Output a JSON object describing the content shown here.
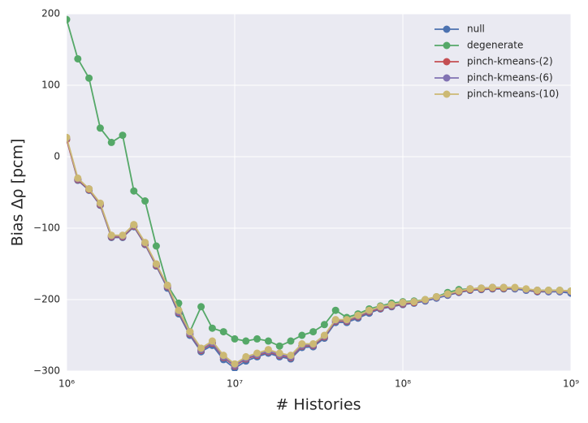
{
  "chart_data": {
    "type": "line",
    "xscale": "log",
    "grid": true,
    "legend": "upper right",
    "xlabel": "# Histories",
    "ylabel": "Bias Δρ [pcm]",
    "xlim": [
      1000000,
      1000000000
    ],
    "ylim": [
      -300,
      200
    ],
    "xticks": [
      {
        "value": 1000000,
        "label": "10⁶"
      },
      {
        "value": 10000000,
        "label": "10⁷"
      },
      {
        "value": 100000000,
        "label": "10⁸"
      },
      {
        "value": 1000000000,
        "label": "10⁹"
      }
    ],
    "yticks": [
      {
        "value": -300,
        "label": "−300"
      },
      {
        "value": -200,
        "label": "−200"
      },
      {
        "value": -100,
        "label": "−100"
      },
      0,
      100,
      200
    ],
    "x": [
      1000000.0,
      1166000.0,
      1359000.0,
      1585000.0,
      1848000.0,
      2154000.0,
      2512000.0,
      2929000.0,
      3415000.0,
      3981000.0,
      4642000.0,
      5412000.0,
      6310000.0,
      7356000.0,
      8577000.0,
      10000000.0,
      11660000.0,
      13590000.0,
      15850000.0,
      18480000.0,
      21540000.0,
      25120000.0,
      29290000.0,
      34150000.0,
      39810000.0,
      46420000.0,
      54120000.0,
      63100000.0,
      73560000.0,
      85770000.0,
      100000000.0,
      116600000.0,
      135900000.0,
      158500000.0,
      184800000.0,
      215400000.0,
      251200000.0,
      292900000.0,
      341500000.0,
      398100000.0,
      464200000.0,
      541200000.0,
      631000000.0,
      735600000.0,
      857700000.0,
      1000000000.0
    ],
    "series": [
      {
        "name": "null",
        "color": "#4c72b0",
        "values": [
          25,
          -33,
          -47,
          -68,
          -113,
          -113,
          -98,
          -123,
          -153,
          -184,
          -220,
          -250,
          -273,
          -264,
          -284,
          -296,
          -286,
          -280,
          -275,
          -280,
          -283,
          -267,
          -266,
          -254,
          -232,
          -232,
          -226,
          -219,
          -213,
          -210,
          -207,
          -205,
          -202,
          -198,
          -194,
          -190,
          -187,
          -186,
          -185,
          -185,
          -185,
          -187,
          -189,
          -189,
          -189,
          -191
        ]
      },
      {
        "name": "degenerate",
        "color": "#55a868",
        "values": [
          192,
          137,
          110,
          40,
          20,
          30,
          -48,
          -62,
          -125,
          -180,
          -205,
          -245,
          -210,
          -240,
          -245,
          -255,
          -258,
          -255,
          -258,
          -265,
          -258,
          -250,
          -245,
          -235,
          -215,
          -225,
          -220,
          -213,
          -209,
          -205,
          -203,
          -202,
          -200,
          -196,
          -190,
          -186,
          -185,
          -184,
          -183,
          -184,
          -184,
          -186,
          -187,
          -187,
          -187,
          -188
        ]
      },
      {
        "name": "pinch-kmeans-(2)",
        "color": "#c44e52",
        "values": [
          24,
          -32,
          -46,
          -67,
          -112,
          -112,
          -97,
          -122,
          -152,
          -182,
          -218,
          -248,
          -271,
          -261,
          -281,
          -293,
          -283,
          -278,
          -273,
          -278,
          -281,
          -265,
          -264,
          -252,
          -230,
          -230,
          -224,
          -217,
          -212,
          -209,
          -206,
          -204,
          -201,
          -197,
          -193,
          -189,
          -186,
          -185,
          -184,
          -184,
          -184,
          -186,
          -188,
          -188,
          -188,
          -189
        ]
      },
      {
        "name": "pinch-kmeans-(6)",
        "color": "#8172b2",
        "values": [
          26,
          -31,
          -45,
          -66,
          -111,
          -111,
          -96,
          -121,
          -151,
          -181,
          -217,
          -247,
          -270,
          -260,
          -280,
          -292,
          -282,
          -277,
          -272,
          -277,
          -280,
          -264,
          -263,
          -251,
          -229,
          -229,
          -223,
          -216,
          -211,
          -208,
          -205,
          -203,
          -201,
          -197,
          -193,
          -188,
          -185,
          -184,
          -183,
          -183,
          -184,
          -186,
          -187,
          -188,
          -188,
          -189
        ]
      },
      {
        "name": "pinch-kmeans-(10)",
        "color": "#ccb974",
        "values": [
          27,
          -30,
          -45,
          -65,
          -110,
          -110,
          -95,
          -120,
          -150,
          -180,
          -215,
          -245,
          -268,
          -258,
          -278,
          -290,
          -280,
          -275,
          -270,
          -275,
          -278,
          -262,
          -262,
          -250,
          -228,
          -228,
          -222,
          -215,
          -210,
          -207,
          -204,
          -203,
          -200,
          -196,
          -192,
          -188,
          -185,
          -184,
          -183,
          -183,
          -183,
          -185,
          -187,
          -187,
          -187,
          -188
        ]
      }
    ]
  }
}
